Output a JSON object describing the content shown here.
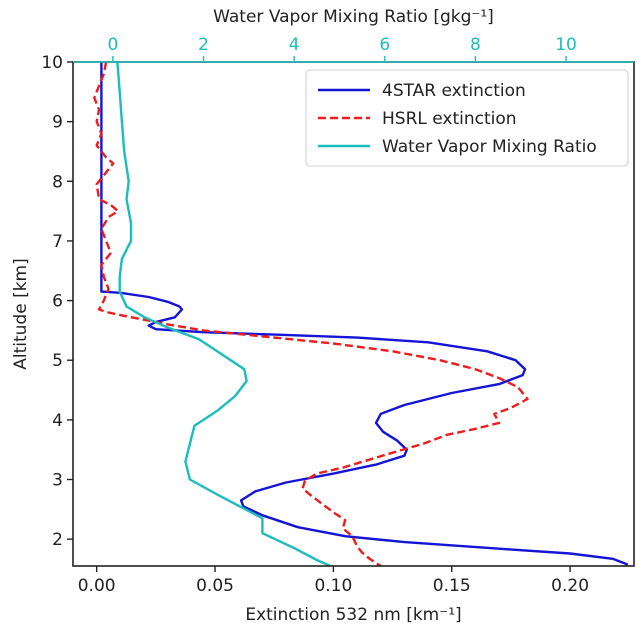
{
  "chart_data": {
    "type": "line",
    "xlabel": "Extinction 532 nm [km$^{-1}$]",
    "xlabel_display": "Extinction 532 nm [km⁻¹]",
    "ylabel": "Altitude [km]",
    "x2label_display": "Water Vapor Mixing Ratio [gkg⁻¹]",
    "xlim": [
      -0.01,
      0.227
    ],
    "ylim": [
      1.55,
      10.0
    ],
    "x2lim": [
      -0.88,
      11.5
    ],
    "x_ticks": [
      "0.00",
      "0.05",
      "0.10",
      "0.15",
      "0.20"
    ],
    "x_tick_values": [
      0.0,
      0.05,
      0.1,
      0.15,
      0.2
    ],
    "y_ticks": [
      "2",
      "3",
      "4",
      "5",
      "6",
      "7",
      "8",
      "9",
      "10"
    ],
    "y_tick_values": [
      2,
      3,
      4,
      5,
      6,
      7,
      8,
      9,
      10
    ],
    "x2_ticks": [
      "0",
      "2",
      "4",
      "6",
      "8",
      "10"
    ],
    "x2_tick_values": [
      0,
      2,
      4,
      6,
      8,
      10
    ],
    "legend_position": "top-right",
    "colors": {
      "fourstar": "#1414d6",
      "hsrl": "#ee1c1c",
      "wv": "#1cbdbd",
      "top_axis": "#1cbdbd"
    },
    "series": [
      {
        "name": "4STAR extinction",
        "axis": "bottom",
        "style": "solid",
        "points": [
          [
            0.002,
            10.0
          ],
          [
            0.002,
            9.0
          ],
          [
            0.002,
            8.0
          ],
          [
            0.002,
            7.0
          ],
          [
            0.002,
            6.5
          ],
          [
            0.002,
            6.15
          ],
          [
            0.01,
            6.13
          ],
          [
            0.022,
            6.06
          ],
          [
            0.03,
            5.98
          ],
          [
            0.035,
            5.9
          ],
          [
            0.036,
            5.85
          ],
          [
            0.033,
            5.72
          ],
          [
            0.025,
            5.64
          ],
          [
            0.022,
            5.58
          ],
          [
            0.025,
            5.52
          ],
          [
            0.045,
            5.47
          ],
          [
            0.075,
            5.43
          ],
          [
            0.11,
            5.38
          ],
          [
            0.14,
            5.3
          ],
          [
            0.165,
            5.15
          ],
          [
            0.177,
            5.0
          ],
          [
            0.181,
            4.85
          ],
          [
            0.18,
            4.75
          ],
          [
            0.17,
            4.6
          ],
          [
            0.15,
            4.45
          ],
          [
            0.13,
            4.25
          ],
          [
            0.12,
            4.1
          ],
          [
            0.118,
            3.95
          ],
          [
            0.121,
            3.8
          ],
          [
            0.127,
            3.65
          ],
          [
            0.131,
            3.5
          ],
          [
            0.13,
            3.4
          ],
          [
            0.118,
            3.25
          ],
          [
            0.1,
            3.1
          ],
          [
            0.08,
            2.95
          ],
          [
            0.067,
            2.8
          ],
          [
            0.061,
            2.65
          ],
          [
            0.062,
            2.55
          ],
          [
            0.07,
            2.4
          ],
          [
            0.085,
            2.2
          ],
          [
            0.105,
            2.05
          ],
          [
            0.13,
            1.95
          ],
          [
            0.17,
            1.84
          ],
          [
            0.2,
            1.76
          ],
          [
            0.218,
            1.67
          ],
          [
            0.224,
            1.58
          ]
        ]
      },
      {
        "name": "HSRL extinction",
        "axis": "bottom",
        "style": "dashed",
        "points": [
          [
            0.004,
            10.0
          ],
          [
            0.003,
            9.8
          ],
          [
            0.001,
            9.6
          ],
          [
            -0.001,
            9.4
          ],
          [
            0.001,
            9.2
          ],
          [
            0.0,
            9.0
          ],
          [
            0.002,
            8.8
          ],
          [
            0.0,
            8.6
          ],
          [
            0.004,
            8.4
          ],
          [
            0.007,
            8.3
          ],
          [
            0.003,
            8.1
          ],
          [
            0.0,
            7.95
          ],
          [
            0.001,
            7.7
          ],
          [
            0.006,
            7.6
          ],
          [
            0.009,
            7.5
          ],
          [
            0.005,
            7.4
          ],
          [
            0.002,
            7.2
          ],
          [
            0.004,
            7.0
          ],
          [
            0.006,
            6.8
          ],
          [
            0.002,
            6.6
          ],
          [
            0.003,
            6.4
          ],
          [
            0.005,
            6.2
          ],
          [
            0.003,
            6.0
          ],
          [
            0.001,
            5.85
          ],
          [
            0.005,
            5.8
          ],
          [
            0.012,
            5.74
          ],
          [
            0.02,
            5.68
          ],
          [
            0.03,
            5.6
          ],
          [
            0.045,
            5.5
          ],
          [
            0.07,
            5.4
          ],
          [
            0.1,
            5.28
          ],
          [
            0.125,
            5.15
          ],
          [
            0.145,
            5.0
          ],
          [
            0.16,
            4.85
          ],
          [
            0.17,
            4.7
          ],
          [
            0.178,
            4.55
          ],
          [
            0.182,
            4.35
          ],
          [
            0.175,
            4.2
          ],
          [
            0.168,
            4.1
          ],
          [
            0.17,
            3.95
          ],
          [
            0.16,
            3.85
          ],
          [
            0.148,
            3.75
          ],
          [
            0.138,
            3.6
          ],
          [
            0.125,
            3.45
          ],
          [
            0.115,
            3.33
          ],
          [
            0.104,
            3.2
          ],
          [
            0.093,
            3.1
          ],
          [
            0.088,
            2.98
          ],
          [
            0.087,
            2.85
          ],
          [
            0.09,
            2.75
          ],
          [
            0.095,
            2.6
          ],
          [
            0.1,
            2.45
          ],
          [
            0.105,
            2.32
          ],
          [
            0.104,
            2.18
          ],
          [
            0.108,
            2.05
          ],
          [
            0.11,
            1.88
          ],
          [
            0.112,
            1.78
          ],
          [
            0.115,
            1.68
          ],
          [
            0.118,
            1.6
          ],
          [
            0.12,
            1.55
          ]
        ]
      },
      {
        "name": "Water Vapor Mixing Ratio",
        "axis": "top",
        "style": "solid",
        "points": [
          [
            0.1,
            10.0
          ],
          [
            0.15,
            9.5
          ],
          [
            0.2,
            9.0
          ],
          [
            0.25,
            8.5
          ],
          [
            0.35,
            8.0
          ],
          [
            0.3,
            7.7
          ],
          [
            0.4,
            7.3
          ],
          [
            0.4,
            7.0
          ],
          [
            0.2,
            6.7
          ],
          [
            0.15,
            6.4
          ],
          [
            0.15,
            6.15
          ],
          [
            0.3,
            5.9
          ],
          [
            0.7,
            5.72
          ],
          [
            1.2,
            5.55
          ],
          [
            1.9,
            5.35
          ],
          [
            2.5,
            5.05
          ],
          [
            2.9,
            4.85
          ],
          [
            2.95,
            4.65
          ],
          [
            2.7,
            4.4
          ],
          [
            2.3,
            4.15
          ],
          [
            1.8,
            3.9
          ],
          [
            1.7,
            3.6
          ],
          [
            1.6,
            3.3
          ],
          [
            1.7,
            3.0
          ],
          [
            2.3,
            2.75
          ],
          [
            2.8,
            2.55
          ],
          [
            3.3,
            2.35
          ],
          [
            3.3,
            2.1
          ],
          [
            4.0,
            1.85
          ],
          [
            4.5,
            1.65
          ],
          [
            4.8,
            1.55
          ]
        ]
      }
    ]
  }
}
